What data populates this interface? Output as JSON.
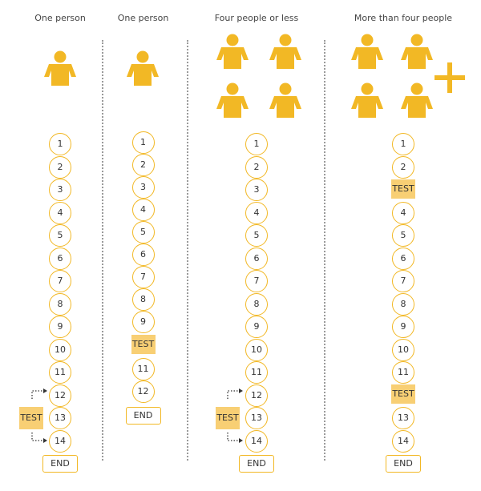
{
  "columns": [
    {
      "heading": "One person",
      "steps": [
        "1",
        "2",
        "3",
        "4",
        "5",
        "6",
        "7",
        "8",
        "9",
        "10",
        "11",
        "12",
        "13",
        "14"
      ],
      "test_label": "TEST",
      "end_label": "END"
    },
    {
      "heading": "One person",
      "steps": [
        "1",
        "2",
        "3",
        "4",
        "5",
        "6",
        "7",
        "8",
        "9",
        "11",
        "12"
      ],
      "test_label": "TEST",
      "end_label": "END"
    },
    {
      "heading": "Four people or less",
      "steps": [
        "1",
        "2",
        "3",
        "4",
        "5",
        "6",
        "7",
        "8",
        "9",
        "10",
        "11",
        "12",
        "13",
        "14"
      ],
      "test_label": "TEST",
      "end_label": "END"
    },
    {
      "heading": "More than four people",
      "steps": [
        "1",
        "2",
        "4",
        "5",
        "6",
        "7",
        "8",
        "9",
        "10",
        "11",
        "13",
        "14"
      ],
      "test_label": "TEST",
      "end_label": "END"
    }
  ],
  "colors": {
    "accent": "#f2b825",
    "test_fill": "#f8cf74",
    "divider": "#9a9a9a"
  },
  "icons": [
    "person-icon",
    "plus-icon",
    "dotted-arrow-icon"
  ]
}
